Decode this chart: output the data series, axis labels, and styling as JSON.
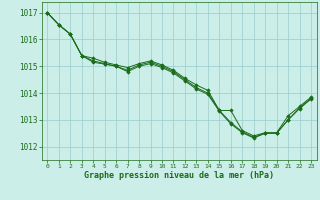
{
  "background_color": "#cceee8",
  "grid_color": "#99cccc",
  "line_color": "#1a6b1a",
  "marker_color": "#1a6b1a",
  "xlabel": "Graphe pression niveau de la mer (hPa)",
  "xlabel_color": "#1a6b1a",
  "tick_color": "#1a6b1a",
  "xlim": [
    -0.5,
    23.5
  ],
  "ylim": [
    1011.5,
    1017.4
  ],
  "yticks": [
    1012,
    1013,
    1014,
    1015,
    1016,
    1017
  ],
  "xticks": [
    0,
    1,
    2,
    3,
    4,
    5,
    6,
    7,
    8,
    9,
    10,
    11,
    12,
    13,
    14,
    15,
    16,
    17,
    18,
    19,
    20,
    21,
    22,
    23
  ],
  "series": [
    [
      1017.0,
      1016.55,
      1016.2,
      1015.4,
      1015.2,
      1015.1,
      1015.0,
      1014.85,
      1015.05,
      1015.15,
      1015.0,
      1014.8,
      1014.5,
      1014.2,
      1014.0,
      1013.35,
      1012.9,
      1012.55,
      1012.35,
      1012.5,
      1012.5,
      1013.0,
      1013.45,
      1013.8
    ],
    [
      1017.0,
      1016.55,
      1016.2,
      1015.4,
      1015.3,
      1015.15,
      1015.05,
      1014.95,
      1015.1,
      1015.2,
      1015.05,
      1014.85,
      1014.55,
      1014.3,
      1014.1,
      1013.35,
      1013.35,
      1012.6,
      1012.4,
      1012.52,
      1012.52,
      1013.15,
      1013.5,
      1013.85
    ],
    [
      1017.0,
      1016.55,
      1016.2,
      1015.4,
      1015.15,
      1015.08,
      1015.0,
      1014.8,
      1015.0,
      1015.1,
      1014.95,
      1014.75,
      1014.45,
      1014.15,
      1013.95,
      1013.32,
      1012.85,
      1012.52,
      1012.32,
      1012.5,
      1012.5,
      1013.0,
      1013.42,
      1013.78
    ]
  ]
}
